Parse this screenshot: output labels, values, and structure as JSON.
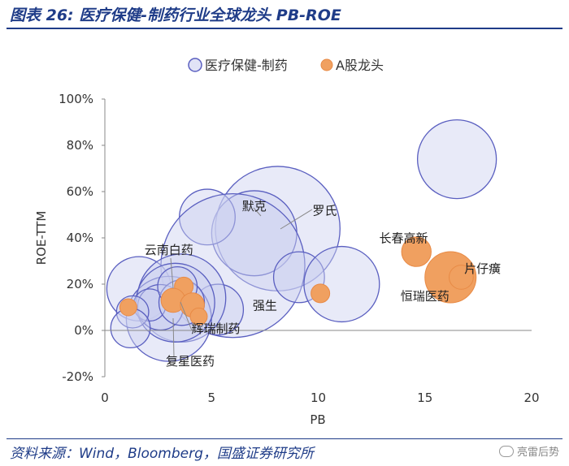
{
  "figure": {
    "title": "图表 26:  医疗保健-制药行业全球龙头 PB-ROE",
    "source": "资料来源：Wind，Bloomberg，国盛证券研究所",
    "watermark": "亮雷后势"
  },
  "colors": {
    "global_fill": "rgba(205,208,240,0.45)",
    "global_stroke": "#5a5fc0",
    "a_share_fill": "#f0a060",
    "a_share_stroke": "#e88a45",
    "title_blue": "#1f3c88",
    "axis": "#333333"
  },
  "chart_data": {
    "type": "scatter",
    "title": "医疗保健-制药行业全球龙头 PB-ROE",
    "xlabel": "PB",
    "ylabel": "ROE-TTM",
    "xlim": [
      0,
      20
    ],
    "ylim": [
      -20,
      100
    ],
    "xticks": [
      0,
      5,
      10,
      15,
      20
    ],
    "yticks": [
      -20,
      0,
      20,
      40,
      60,
      80,
      100
    ],
    "x_tick_labels": [
      "0",
      "5",
      "10",
      "15",
      "20"
    ],
    "y_tick_labels": [
      "-20%",
      "0%",
      "20%",
      "40%",
      "60%",
      "80%",
      "100%"
    ],
    "legend": {
      "position": "top-center",
      "entries": [
        "医疗保健-制药",
        "A股龙头"
      ]
    },
    "series": [
      {
        "name": "医疗保健-制药",
        "points": [
          {
            "x": 16.5,
            "y": 74,
            "size": 12
          },
          {
            "x": 8.1,
            "y": 44,
            "size": 30
          },
          {
            "x": 7.0,
            "y": 42,
            "size": 14
          },
          {
            "x": 4.8,
            "y": 49,
            "size": 6
          },
          {
            "x": 6.0,
            "y": 28,
            "size": 40
          },
          {
            "x": 9.1,
            "y": 23,
            "size": 5
          },
          {
            "x": 11.1,
            "y": 20,
            "size": 11
          },
          {
            "x": 5.3,
            "y": 9,
            "size": 5
          },
          {
            "x": 1.6,
            "y": 18,
            "size": 8
          },
          {
            "x": 3.6,
            "y": 14,
            "size": 15
          },
          {
            "x": 3.0,
            "y": 5,
            "size": 14
          },
          {
            "x": 3.3,
            "y": 12,
            "size": 12
          },
          {
            "x": 2.6,
            "y": 10,
            "size": 4
          },
          {
            "x": 2.1,
            "y": 11,
            "size": 2
          },
          {
            "x": 1.3,
            "y": 8,
            "size": 2
          },
          {
            "x": 1.2,
            "y": 1,
            "size": 3
          },
          {
            "x": 3.6,
            "y": 12,
            "size": 4
          },
          {
            "x": 3.4,
            "y": 19,
            "size": 3
          }
        ]
      },
      {
        "name": "A股龙头",
        "points": [
          {
            "x": 14.6,
            "y": 34,
            "size": 3
          },
          {
            "x": 16.2,
            "y": 23,
            "size": 9
          },
          {
            "x": 16.7,
            "y": 23,
            "size": 2
          },
          {
            "x": 10.1,
            "y": 16,
            "size": 1.2
          },
          {
            "x": 1.1,
            "y": 10,
            "size": 1
          },
          {
            "x": 3.7,
            "y": 19,
            "size": 1.2
          },
          {
            "x": 3.2,
            "y": 13,
            "size": 2
          },
          {
            "x": 4.1,
            "y": 11,
            "size": 2
          },
          {
            "x": 4.4,
            "y": 6,
            "size": 1
          }
        ]
      }
    ],
    "annotations": [
      {
        "text": "默克",
        "x": 7.0,
        "y": 52
      },
      {
        "text": "罗氏",
        "x": 10.3,
        "y": 50
      },
      {
        "text": "长春高新",
        "x": 14.0,
        "y": 38
      },
      {
        "text": "片仔癀",
        "x": 17.7,
        "y": 25
      },
      {
        "text": "恒瑞医药",
        "x": 15.0,
        "y": 13
      },
      {
        "text": "云南白药",
        "x": 3.0,
        "y": 33
      },
      {
        "text": "强生",
        "x": 7.5,
        "y": 9
      },
      {
        "text": "辉瑞制药",
        "x": 5.2,
        "y": -1
      },
      {
        "text": "复星医药",
        "x": 4.0,
        "y": -15
      }
    ]
  }
}
